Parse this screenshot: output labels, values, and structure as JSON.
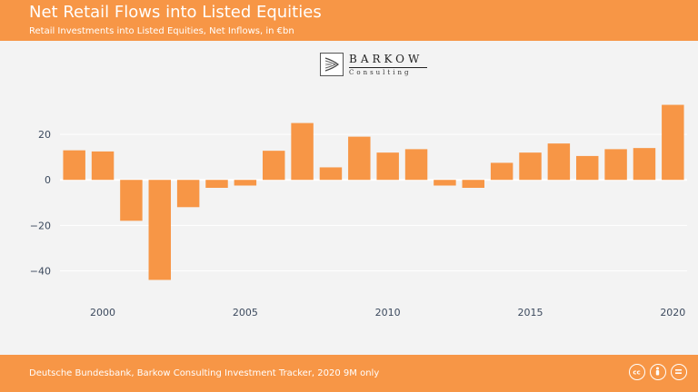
{
  "header": {
    "title": "Net Retail Flows into Listed Equities",
    "subtitle": "Retail Investments into Listed Equities, Net Inflows, in €bn"
  },
  "logo": {
    "name": "BARKOW",
    "sub": "Consulting"
  },
  "footer": {
    "source": "Deutsche Bundesbank, Barkow Consulting Investment Tracker, 2020 9M only"
  },
  "colors": {
    "accent": "#f79646",
    "bar": "#f79646",
    "plot_background": "#f3f3f3",
    "gridline": "#ffffff",
    "tick_text": "#3c4a5e"
  },
  "icons": [
    "cc-icon",
    "attribution-icon",
    "no-derivatives-icon"
  ],
  "chart_data": {
    "type": "bar",
    "title": "Net Retail Flows into Listed Equities",
    "subtitle": "Retail Investments into Listed Equities, Net Inflows, in €bn",
    "x": [
      1999,
      2000,
      2001,
      2002,
      2003,
      2004,
      2005,
      2006,
      2007,
      2008,
      2009,
      2010,
      2011,
      2012,
      2013,
      2014,
      2015,
      2016,
      2017,
      2018,
      2019,
      2020
    ],
    "values": [
      13,
      12.5,
      -18,
      -44,
      -12,
      -3.5,
      -2.5,
      12.8,
      25,
      5.5,
      19,
      12,
      13.5,
      -2.5,
      -3.5,
      7.5,
      12,
      16,
      10.5,
      13.5,
      14,
      33
    ],
    "x_ticks": [
      2000,
      2005,
      2010,
      2015,
      2020
    ],
    "y_ticks": [
      -40,
      -20,
      0,
      20
    ],
    "ylim": [
      -49,
      40
    ],
    "xlim": [
      1998.5,
      2020.5
    ],
    "xlabel": "",
    "ylabel": "",
    "grid": true,
    "legend": "none"
  }
}
